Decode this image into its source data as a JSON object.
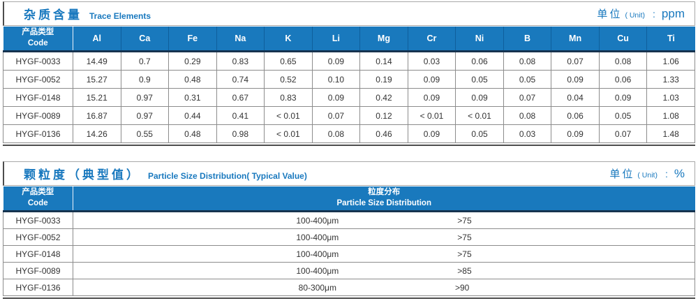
{
  "table1": {
    "title_zh": "杂质含量",
    "title_en": "Trace Elements",
    "unit_zh": "单位",
    "unit_paren": "( Unit)",
    "unit_colon": ":",
    "unit_value": "ppm",
    "header": {
      "code_zh": "产品类型",
      "code_en": "Code",
      "elements": [
        "Al",
        "Ca",
        "Fe",
        "Na",
        "K",
        "Li",
        "Mg",
        "Cr",
        "Ni",
        "B",
        "Mn",
        "Cu",
        "Ti"
      ]
    },
    "rows": [
      {
        "code": "HYGF-0033",
        "values": [
          "14.49",
          "0.7",
          "0.29",
          "0.83",
          "0.65",
          "0.09",
          "0.14",
          "0.03",
          "0.06",
          "0.08",
          "0.07",
          "0.08",
          "1.06"
        ]
      },
      {
        "code": "HYGF-0052",
        "values": [
          "15.27",
          "0.9",
          "0.48",
          "0.74",
          "0.52",
          "0.10",
          "0.19",
          "0.09",
          "0.05",
          "0.05",
          "0.09",
          "0.06",
          "1.33"
        ]
      },
      {
        "code": "HYGF-0148",
        "values": [
          "15.21",
          "0.97",
          "0.31",
          "0.67",
          "0.83",
          "0.09",
          "0.42",
          "0.09",
          "0.09",
          "0.07",
          "0.04",
          "0.09",
          "1.03"
        ]
      },
      {
        "code": "HYGF-0089",
        "values": [
          "16.87",
          "0.97",
          "0.44",
          "0.41",
          "< 0.01",
          "0.07",
          "0.12",
          "< 0.01",
          "< 0.01",
          "0.08",
          "0.06",
          "0.05",
          "1.08"
        ]
      },
      {
        "code": "HYGF-0136",
        "values": [
          "14.26",
          "0.55",
          "0.48",
          "0.98",
          "< 0.01",
          "0.08",
          "0.46",
          "0.09",
          "0.05",
          "0.03",
          "0.09",
          "0.07",
          "1.48"
        ]
      }
    ]
  },
  "table2": {
    "title_zh": "颗粒度（典型值）",
    "title_en": "Particle Size Distribution( Typical Value)",
    "unit_zh": "单位",
    "unit_paren": "( Unit)",
    "unit_colon": ":",
    "unit_value": "%",
    "header": {
      "code_zh": "产品类型",
      "code_en": "Code",
      "dist_zh": "粒度分布",
      "dist_en": "Particle Size Distribution"
    },
    "rows": [
      {
        "code": "HYGF-0033",
        "range": "100-400μm",
        "percent": ">75"
      },
      {
        "code": "HYGF-0052",
        "range": "100-400μm",
        "percent": ">75"
      },
      {
        "code": "HYGF-0148",
        "range": "100-400μm",
        "percent": ">75"
      },
      {
        "code": "HYGF-0089",
        "range": "100-400μm",
        "percent": ">85"
      },
      {
        "code": "HYGF-0136",
        "range": "80-300μm",
        "percent": ">90"
      }
    ]
  },
  "colors": {
    "header_blue": "#1979bd",
    "title_blue": "#1878be",
    "header_divider": "#0f5f9c",
    "header_underline": "#16334f",
    "grid_gray": "#8c8c8c"
  }
}
